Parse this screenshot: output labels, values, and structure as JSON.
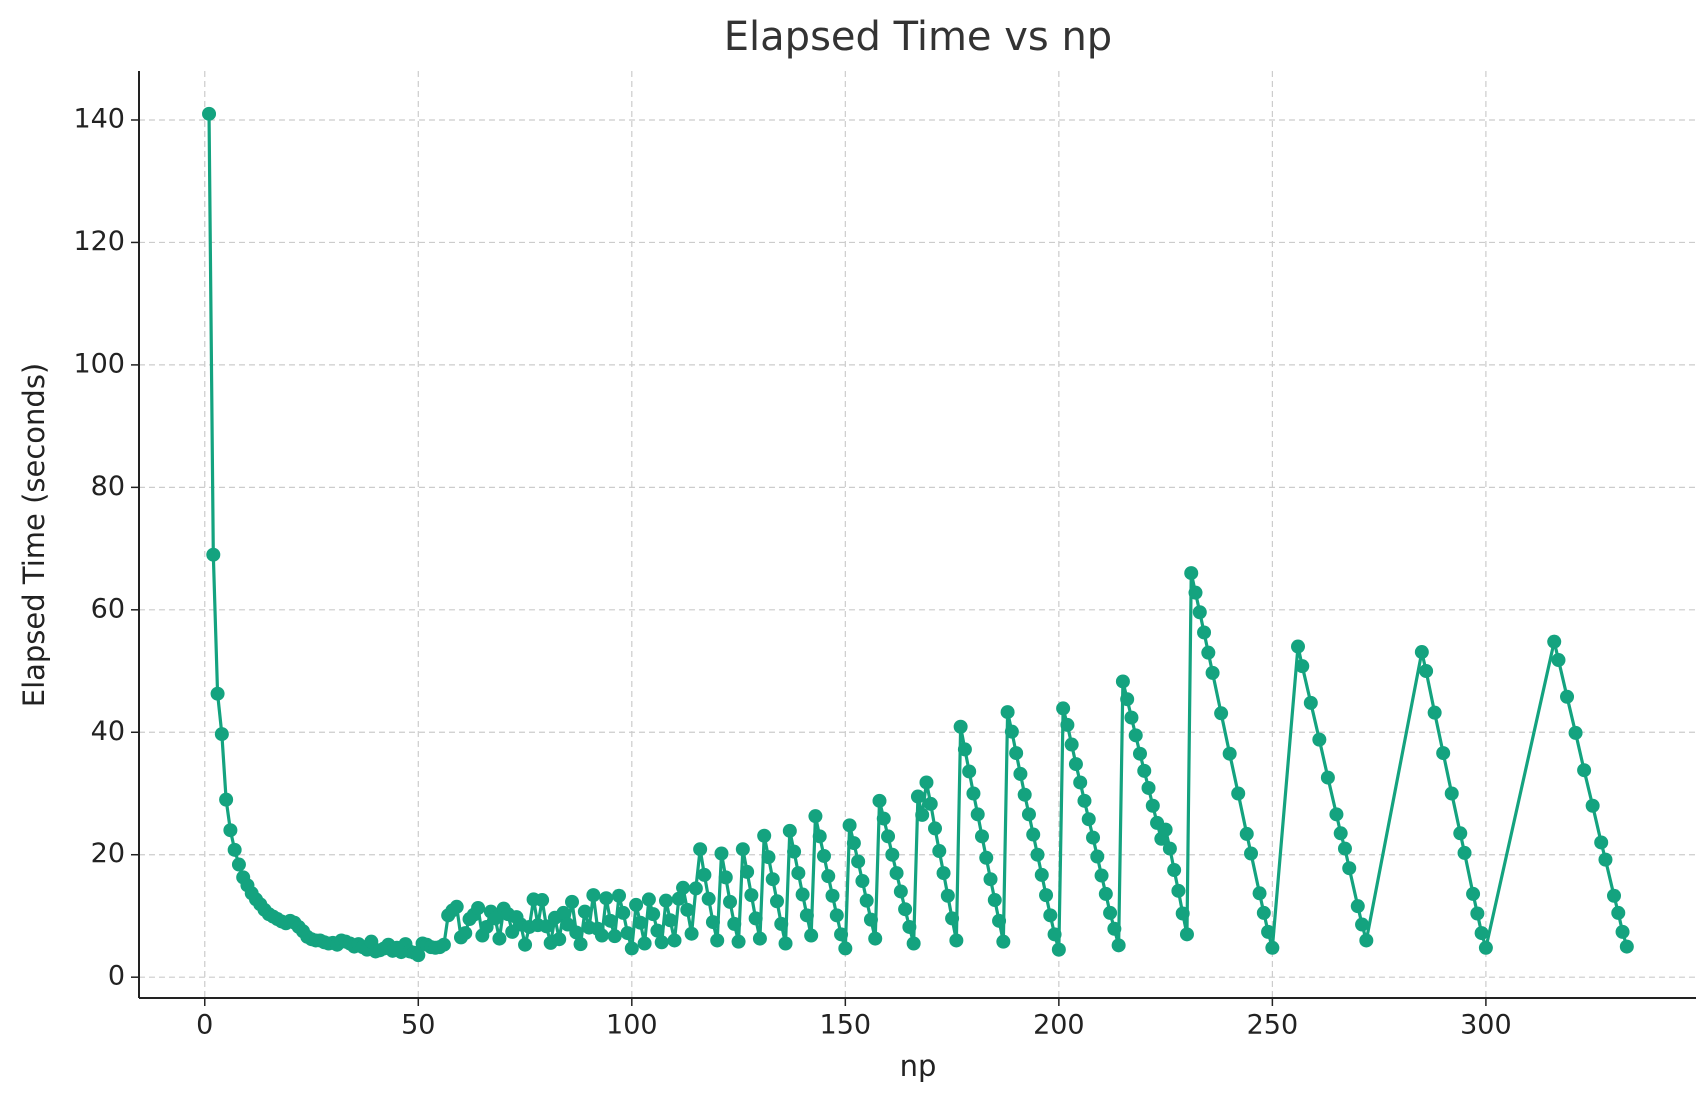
{
  "chart_data": {
    "type": "line",
    "title": "Elapsed Time vs np",
    "x_label": "np",
    "y_label": "Elapsed Time (seconds)",
    "x": [
      1,
      2,
      3,
      4,
      5,
      6,
      7,
      8,
      9,
      10,
      11,
      12,
      13,
      14,
      15,
      16,
      17,
      18,
      19,
      20,
      21,
      22,
      23,
      24,
      25,
      26,
      27,
      28,
      29,
      30,
      31,
      32,
      33,
      34,
      35,
      36,
      37,
      38,
      39,
      40,
      41,
      42,
      43,
      44,
      45,
      46,
      47,
      48,
      49,
      50,
      51,
      52,
      53,
      54,
      55,
      56,
      57,
      58,
      59,
      60,
      61,
      62,
      63,
      64,
      65,
      66,
      67,
      68,
      69,
      70,
      71,
      72,
      73,
      74,
      75,
      76,
      77,
      78,
      79,
      80,
      81,
      82,
      83,
      84,
      85,
      86,
      87,
      88,
      89,
      90,
      91,
      92,
      93,
      94,
      95,
      96,
      97,
      98,
      99,
      100,
      101,
      102,
      103,
      104,
      105,
      106,
      107,
      108,
      109,
      110,
      111,
      112,
      113,
      114,
      115,
      116,
      117,
      118,
      119,
      120,
      121,
      122,
      123,
      124,
      125,
      126,
      127,
      128,
      129,
      130,
      131,
      132,
      133,
      134,
      135,
      136,
      137,
      138,
      139,
      140,
      141,
      142,
      143,
      144,
      145,
      146,
      147,
      148,
      149,
      150,
      151,
      152,
      153,
      154,
      155,
      156,
      157,
      158,
      159,
      160,
      161,
      162,
      163,
      164,
      165,
      166,
      167,
      168,
      169,
      170,
      171,
      172,
      173,
      174,
      175,
      176,
      177,
      178,
      179,
      180,
      181,
      182,
      183,
      184,
      185,
      186,
      187,
      188,
      189,
      190,
      191,
      192,
      193,
      194,
      195,
      196,
      197,
      198,
      199,
      200,
      201,
      202,
      203,
      204,
      205,
      206,
      207,
      208,
      209,
      210,
      211,
      212,
      213,
      214,
      215,
      216,
      217,
      218,
      219,
      220,
      221,
      222,
      223,
      224,
      225,
      226,
      227,
      228,
      229,
      230,
      231,
      232,
      233,
      234,
      235,
      236,
      238,
      240,
      242,
      244,
      245,
      247,
      248,
      249,
      250,
      256,
      257,
      259,
      261,
      263,
      265,
      266,
      267,
      268,
      270,
      271,
      272,
      285,
      286,
      288,
      290,
      292,
      294,
      295,
      297,
      298,
      299,
      300,
      316,
      317,
      319,
      321,
      323,
      325,
      327,
      328,
      330,
      331,
      332,
      333
    ],
    "series": [
      {
        "name": "Elapsed Time",
        "color": "#14a37f",
        "values": [
          141,
          69,
          46.3,
          39.7,
          29,
          24,
          20.8,
          18.4,
          16.3,
          15,
          13.7,
          12.7,
          11.9,
          11,
          10.3,
          9.9,
          9.5,
          9.1,
          8.8,
          9.2,
          8.9,
          8.2,
          7.5,
          6.6,
          6.2,
          6.0,
          6.0,
          5.7,
          5.5,
          5.6,
          5.3,
          6.0,
          5.8,
          5.5,
          5.0,
          5.4,
          4.9,
          4.5,
          5.8,
          4.2,
          4.4,
          4.7,
          5.3,
          4.3,
          4.8,
          4.1,
          5.4,
          4.2,
          4.0,
          3.6,
          5.5,
          5.3,
          4.9,
          4.8,
          4.9,
          5.3,
          10.1,
          10.9,
          11.5,
          6.5,
          7.2,
          9.5,
          10.2,
          11.3,
          6.8,
          8.2,
          10.7,
          9.6,
          6.3,
          11.2,
          10.3,
          7.4,
          9.8,
          8.6,
          5.3,
          8.2,
          12.7,
          8.5,
          12.6,
          8.3,
          5.6,
          9.7,
          6.2,
          10.5,
          8.6,
          12.3,
          7.3,
          5.4,
          10.7,
          8.1,
          13.4,
          7.9,
          6.8,
          12.9,
          9.2,
          6.7,
          13.3,
          10.5,
          7.2,
          4.7,
          11.8,
          8.9,
          5.5,
          12.7,
          10.3,
          7.6,
          5.7,
          12.5,
          9.3,
          6.0,
          12.8,
          14.6,
          11.0,
          7.1,
          14.5,
          20.9,
          16.7,
          12.8,
          9.0,
          6.0,
          20.2,
          16.3,
          12.3,
          8.7,
          5.8,
          20.9,
          17.2,
          13.4,
          9.6,
          6.3,
          23.1,
          19.6,
          16.0,
          12.4,
          8.7,
          5.5,
          23.9,
          20.5,
          17.0,
          13.5,
          10.1,
          6.8,
          26.3,
          23.0,
          19.8,
          16.5,
          13.3,
          10.1,
          7.0,
          4.7,
          24.8,
          21.9,
          18.9,
          15.7,
          12.5,
          9.4,
          6.3,
          28.8,
          25.9,
          23.0,
          20.0,
          17.0,
          14.0,
          11.1,
          8.2,
          5.5,
          29.5,
          26.5,
          31.8,
          28.3,
          24.3,
          20.6,
          17.0,
          13.3,
          9.6,
          6.0,
          40.9,
          37.2,
          33.6,
          30.0,
          26.6,
          23.0,
          19.5,
          16.0,
          12.6,
          9.2,
          5.8,
          43.3,
          40.1,
          36.6,
          33.2,
          29.8,
          26.6,
          23.3,
          20.0,
          16.7,
          13.4,
          10.1,
          7.0,
          4.5,
          43.9,
          41.2,
          38.0,
          34.8,
          31.8,
          28.8,
          25.8,
          22.8,
          19.7,
          16.6,
          13.6,
          10.5,
          7.9,
          5.2,
          48.3,
          45.4,
          42.4,
          39.5,
          36.5,
          33.7,
          30.9,
          28.0,
          25.2,
          22.6,
          24.1,
          21.0,
          17.5,
          14.1,
          10.4,
          7.0,
          66.0,
          62.8,
          59.6,
          56.3,
          53.0,
          49.7,
          43.1,
          36.5,
          30.0,
          23.4,
          20.2,
          13.7,
          10.5,
          7.4,
          4.8,
          54.0,
          50.8,
          44.8,
          38.8,
          32.6,
          26.6,
          23.5,
          21.0,
          17.8,
          11.6,
          8.6,
          6.0,
          53.1,
          50.0,
          43.2,
          36.6,
          30.0,
          23.5,
          20.3,
          13.6,
          10.4,
          7.2,
          4.8,
          54.8,
          51.8,
          45.8,
          39.9,
          33.8,
          28.0,
          22.0,
          19.2,
          13.3,
          10.5,
          7.4,
          5.0
        ]
      }
    ],
    "xlim": [
      -15.4,
      349.2
    ],
    "ylim": [
      -3.4,
      148
    ],
    "xticks": [
      0,
      50,
      100,
      150,
      200,
      250,
      300
    ],
    "yticks": [
      0,
      20,
      40,
      60,
      80,
      100,
      120,
      140
    ],
    "grid": true
  }
}
